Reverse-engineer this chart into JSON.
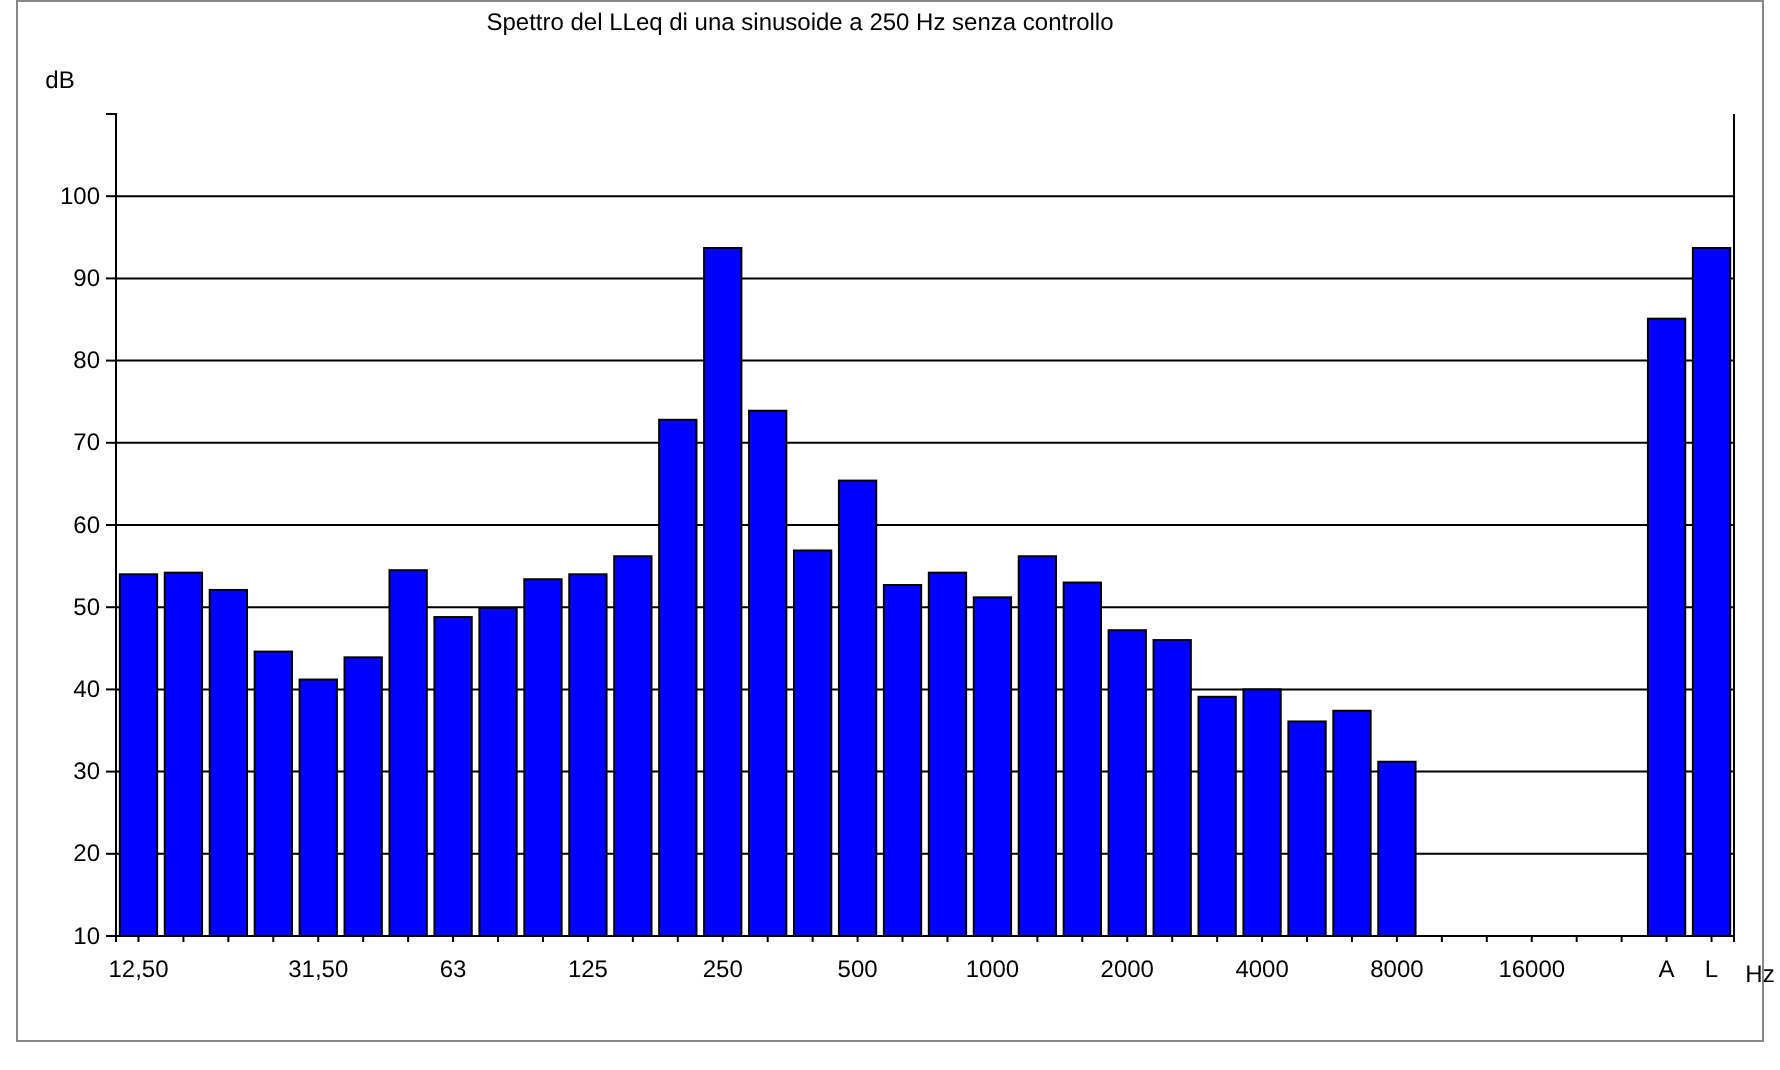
{
  "chart_data": {
    "type": "bar",
    "title": "Spettro del LLeq di una sinusoide a 250 Hz senza controllo",
    "ylabel": "dB",
    "xlabel": "Hz",
    "categories": [
      "12,50",
      null,
      null,
      null,
      "31,50",
      null,
      null,
      "63",
      null,
      null,
      "125",
      null,
      null,
      "250",
      null,
      null,
      "500",
      null,
      null,
      "1000",
      null,
      null,
      "2000",
      null,
      null,
      "4000",
      null,
      null,
      "8000",
      null,
      null,
      "16000",
      null,
      null,
      "A",
      "L"
    ],
    "values": [
      54.0,
      54.2,
      52.1,
      44.6,
      41.2,
      43.9,
      54.5,
      48.8,
      49.9,
      53.4,
      54.0,
      56.2,
      72.8,
      93.7,
      73.9,
      56.9,
      65.4,
      52.7,
      54.2,
      51.2,
      56.2,
      53.0,
      47.2,
      46.0,
      39.1,
      40.0,
      36.1,
      37.4,
      31.2,
      null,
      null,
      null,
      null,
      null,
      85.1,
      93.7
    ],
    "color": "#0000ff",
    "ylim": [
      10,
      110
    ],
    "yticks": [
      10,
      20,
      30,
      40,
      50,
      60,
      70,
      80,
      90,
      100
    ],
    "grid": "y"
  }
}
